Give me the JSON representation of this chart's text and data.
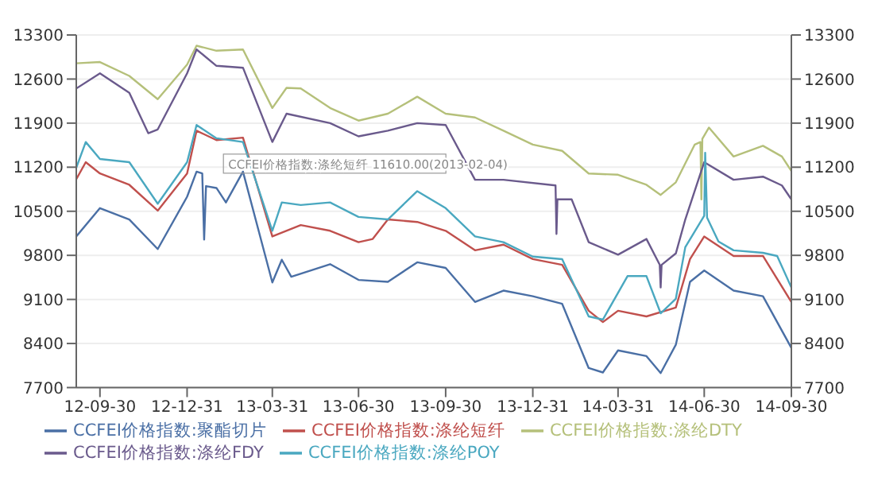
{
  "chart_data": {
    "type": "line",
    "marker": "none",
    "line_style": "solid",
    "grid": "y",
    "legend": "bottom",
    "xlim": [
      "2012-09-05",
      "2014-09-30"
    ],
    "xticks": [
      {
        "value": "2012-09-30",
        "label": "12-09-30"
      },
      {
        "value": "2012-12-31",
        "label": "12-12-31"
      },
      {
        "value": "2013-03-31",
        "label": "13-03-31"
      },
      {
        "value": "2013-06-30",
        "label": "13-06-30"
      },
      {
        "value": "2013-09-30",
        "label": "13-09-30"
      },
      {
        "value": "2013-12-31",
        "label": "13-12-31"
      },
      {
        "value": "2014-03-31",
        "label": "14-03-31"
      },
      {
        "value": "2014-06-30",
        "label": "14-06-30"
      },
      {
        "value": "2014-09-30",
        "label": "14-09-30"
      }
    ],
    "ylim": [
      7700,
      13300
    ],
    "yticks": [
      7700,
      8400,
      9100,
      9800,
      10500,
      11200,
      11900,
      12600,
      13300
    ],
    "y2lim": [
      7700,
      13300
    ],
    "y2ticks": [
      7700,
      8400,
      9100,
      9800,
      10500,
      11200,
      11900,
      12600,
      13300
    ],
    "annotations": [
      {
        "text": "CCFEI价格指数:涤纶短纤 11610.00(2013-02-04)",
        "x": "2013-02-04",
        "y": 11610
      }
    ],
    "series": [
      {
        "name": "CCFEI价格指数:聚酯切片",
        "color": "#4a6fa5",
        "x": [
          "2012-09-05",
          "2012-09-30",
          "2012-10-31",
          "2012-11-30",
          "2012-12-31",
          "2013-01-10",
          "2013-01-16",
          "2013-01-18",
          "2013-01-20",
          "2013-01-31",
          "2013-02-10",
          "2013-02-28",
          "2013-03-31",
          "2013-04-10",
          "2013-04-20",
          "2013-05-31",
          "2013-06-30",
          "2013-07-31",
          "2013-08-31",
          "2013-09-30",
          "2013-10-31",
          "2013-11-30",
          "2013-12-31",
          "2014-01-31",
          "2014-02-28",
          "2014-03-15",
          "2014-03-31",
          "2014-04-30",
          "2014-05-15",
          "2014-05-31",
          "2014-06-15",
          "2014-06-30",
          "2014-07-31",
          "2014-08-31",
          "2014-09-30"
        ],
        "values": [
          10100,
          10550,
          10370,
          9900,
          10730,
          11130,
          11100,
          10050,
          10900,
          10870,
          10640,
          11130,
          9370,
          9730,
          9460,
          9660,
          9410,
          9380,
          9690,
          9600,
          9060,
          9240,
          9150,
          9030,
          8010,
          7940,
          8290,
          8200,
          7930,
          8380,
          9380,
          9560,
          9240,
          9150,
          8330
        ]
      },
      {
        "name": "CCFEI价格指数:涤纶短纤",
        "color": "#c0504d",
        "x": [
          "2012-09-05",
          "2012-09-15",
          "2012-09-30",
          "2012-10-31",
          "2012-11-30",
          "2012-12-31",
          "2013-01-10",
          "2013-01-31",
          "2013-02-28",
          "2013-03-31",
          "2013-04-30",
          "2013-05-31",
          "2013-06-30",
          "2013-07-15",
          "2013-07-31",
          "2013-08-31",
          "2013-09-30",
          "2013-10-31",
          "2013-11-30",
          "2013-12-31",
          "2014-01-31",
          "2014-02-28",
          "2014-03-15",
          "2014-03-31",
          "2014-04-30",
          "2014-05-31",
          "2014-06-15",
          "2014-06-30",
          "2014-07-31",
          "2014-08-31",
          "2014-09-30"
        ],
        "values": [
          11010,
          11280,
          11100,
          10920,
          10510,
          11100,
          11780,
          11630,
          11670,
          10100,
          10280,
          10190,
          10010,
          10060,
          10370,
          10330,
          10190,
          9880,
          9970,
          9740,
          9650,
          8920,
          8740,
          8920,
          8830,
          8970,
          9740,
          10100,
          9790,
          9790,
          9060
        ]
      },
      {
        "name": "CCFEI价格指数:涤纶DTY",
        "color": "#b5c07a",
        "x": [
          "2012-09-05",
          "2012-09-30",
          "2012-10-31",
          "2012-11-30",
          "2012-12-31",
          "2013-01-10",
          "2013-01-31",
          "2013-02-28",
          "2013-03-31",
          "2013-04-15",
          "2013-04-30",
          "2013-05-31",
          "2013-06-30",
          "2013-07-31",
          "2013-08-31",
          "2013-09-30",
          "2013-10-31",
          "2013-11-30",
          "2013-12-31",
          "2014-01-31",
          "2014-02-28",
          "2014-03-31",
          "2014-04-30",
          "2014-05-15",
          "2014-05-31",
          "2014-06-20",
          "2014-06-26",
          "2014-06-27",
          "2014-06-28",
          "2014-07-05",
          "2014-07-31",
          "2014-08-31",
          "2014-09-20",
          "2014-09-30"
        ],
        "values": [
          12850,
          12870,
          12650,
          12280,
          12830,
          13130,
          13050,
          13070,
          12140,
          12460,
          12450,
          12140,
          11940,
          12050,
          12320,
          12050,
          11990,
          11780,
          11560,
          11460,
          11100,
          11080,
          10920,
          10760,
          10960,
          11560,
          11600,
          10690,
          11650,
          11830,
          11370,
          11540,
          11370,
          11140
        ]
      },
      {
        "name": "CCFEI价格指数:涤纶FDY",
        "color": "#6a5a8c",
        "x": [
          "2012-09-05",
          "2012-09-30",
          "2012-10-31",
          "2012-11-20",
          "2012-11-30",
          "2012-12-31",
          "2013-01-10",
          "2013-01-31",
          "2013-02-28",
          "2013-03-31",
          "2013-04-15",
          "2013-05-31",
          "2013-06-30",
          "2013-07-31",
          "2013-08-31",
          "2013-09-30",
          "2013-10-31",
          "2013-11-30",
          "2014-01-24",
          "2014-01-25",
          "2014-01-26",
          "2014-02-10",
          "2014-02-28",
          "2014-03-31",
          "2014-04-30",
          "2014-05-14",
          "2014-05-15",
          "2014-05-16",
          "2014-05-31",
          "2014-06-10",
          "2014-06-30",
          "2014-07-31",
          "2014-08-31",
          "2014-09-20",
          "2014-09-30"
        ],
        "values": [
          12450,
          12690,
          12380,
          11740,
          11800,
          12690,
          13070,
          12810,
          12780,
          11600,
          12050,
          11900,
          11690,
          11780,
          11900,
          11870,
          11000,
          11000,
          10910,
          10140,
          10690,
          10690,
          10010,
          9810,
          10060,
          9650,
          9290,
          9650,
          9830,
          10370,
          11280,
          11000,
          11050,
          10910,
          10690
        ]
      },
      {
        "name": "CCFEI价格指数:涤纶POY",
        "color": "#4aa8c0",
        "x": [
          "2012-09-05",
          "2012-09-15",
          "2012-09-30",
          "2012-10-31",
          "2012-11-30",
          "2012-12-31",
          "2013-01-10",
          "2013-01-31",
          "2013-02-28",
          "2013-03-31",
          "2013-04-10",
          "2013-04-30",
          "2013-05-31",
          "2013-06-30",
          "2013-07-31",
          "2013-08-31",
          "2013-09-30",
          "2013-10-31",
          "2013-11-30",
          "2013-12-31",
          "2014-01-31",
          "2014-02-28",
          "2014-03-15",
          "2014-04-10",
          "2014-04-30",
          "2014-05-15",
          "2014-05-31",
          "2014-06-10",
          "2014-06-30",
          "2014-07-01",
          "2014-07-03",
          "2014-07-15",
          "2014-07-31",
          "2014-08-31",
          "2014-09-15",
          "2014-09-30"
        ],
        "values": [
          11190,
          11600,
          11330,
          11280,
          10620,
          11280,
          11870,
          11660,
          11600,
          10190,
          10640,
          10600,
          10640,
          10410,
          10370,
          10820,
          10550,
          10100,
          10010,
          9780,
          9740,
          8830,
          8780,
          9470,
          9470,
          8880,
          9110,
          9930,
          10430,
          11430,
          10400,
          10020,
          9880,
          9840,
          9790,
          9290
        ]
      }
    ]
  }
}
